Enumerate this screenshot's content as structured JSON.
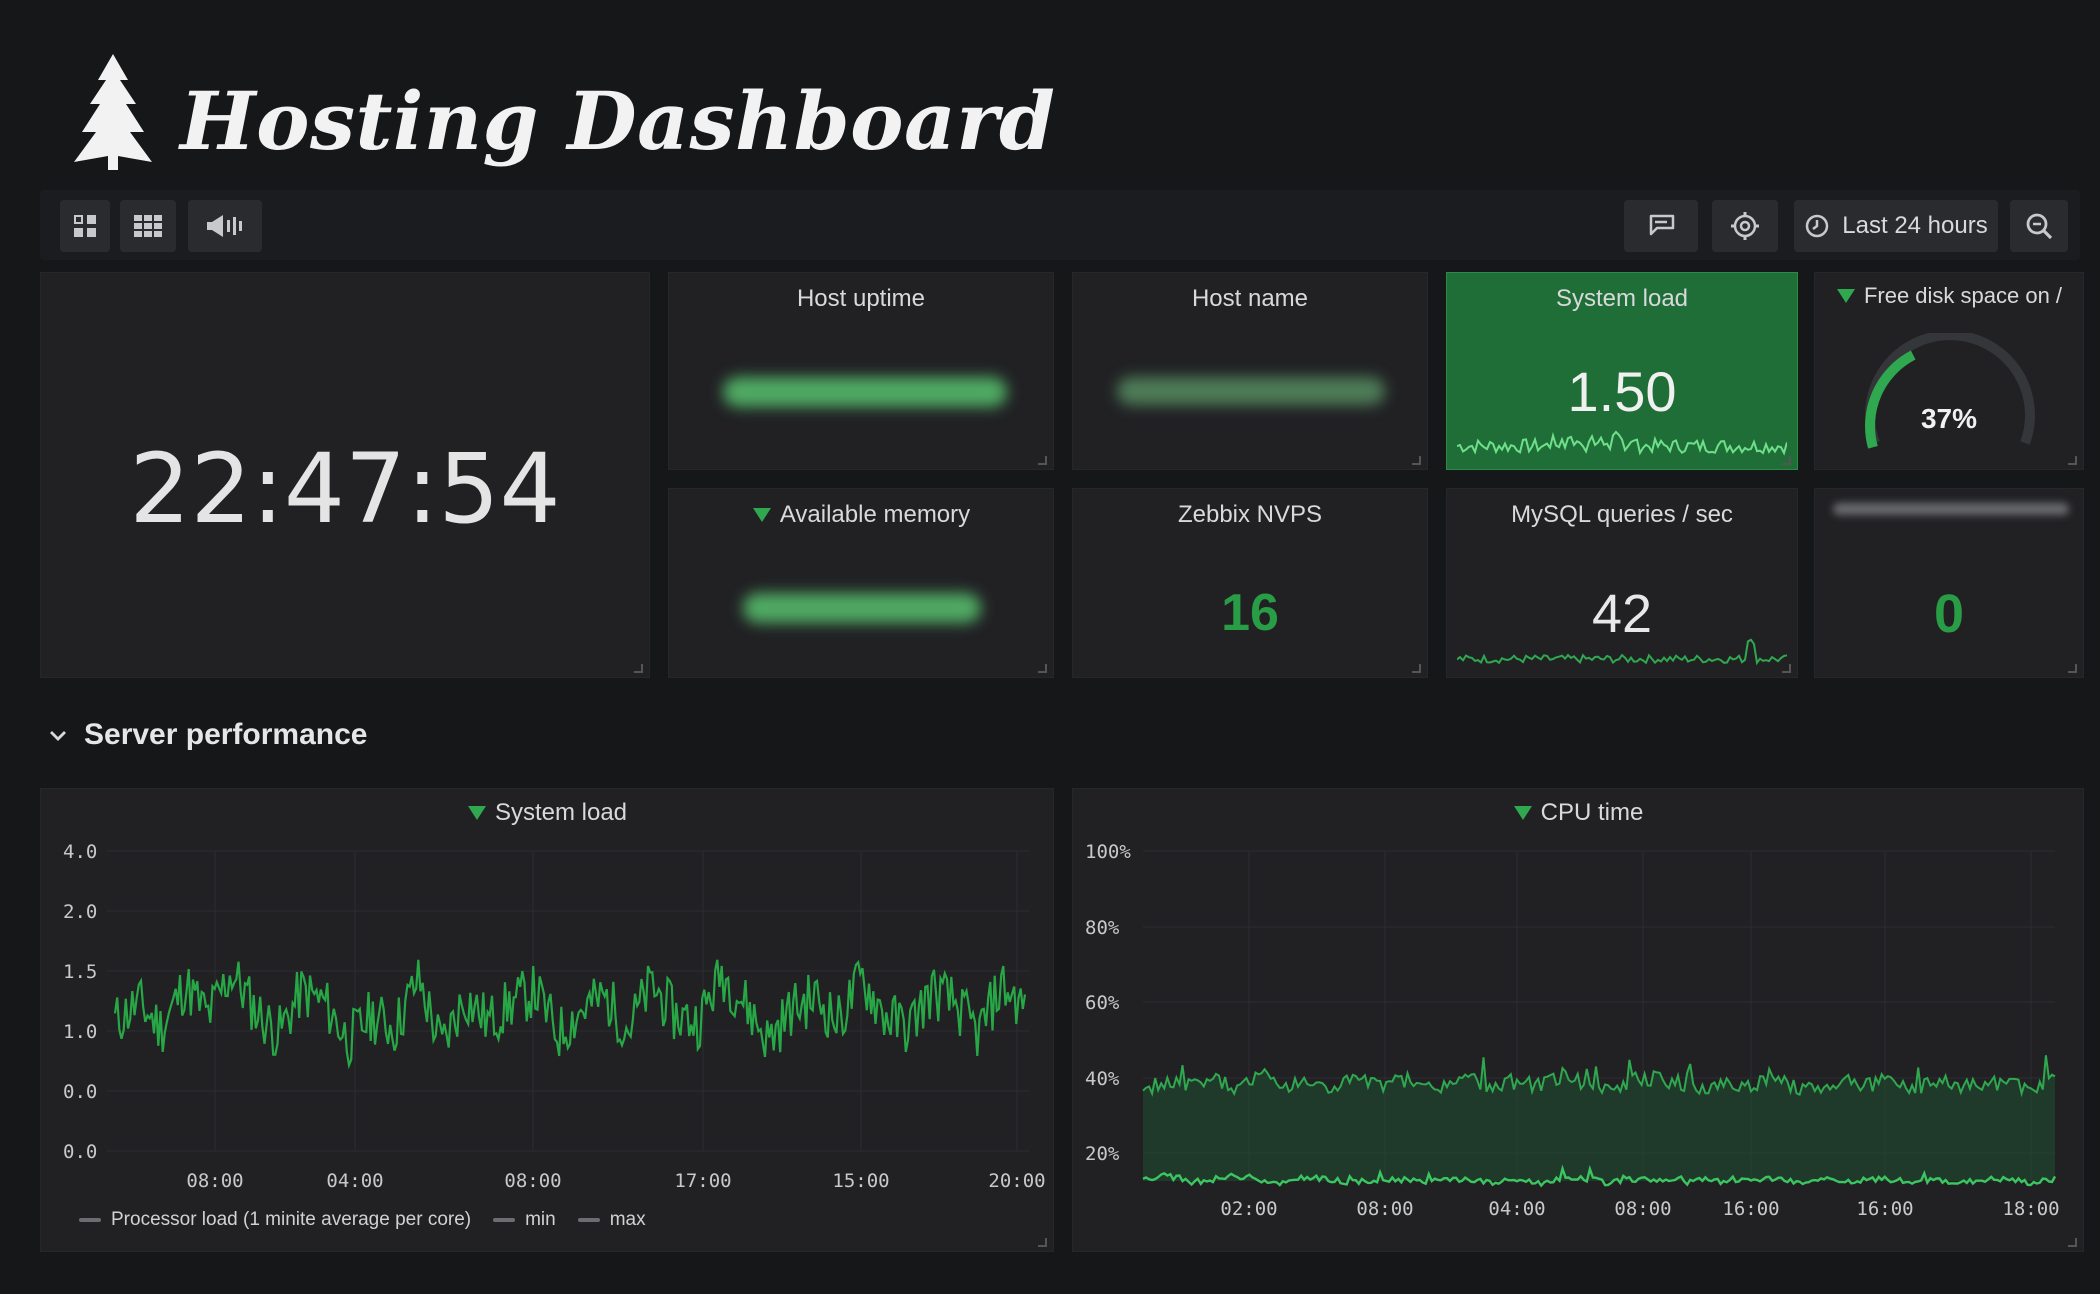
{
  "header": {
    "title": "Hosting Dashboard",
    "logo_icon": "tree-logo-icon"
  },
  "toolbar": {
    "left_buttons": [
      "dashboard-icon",
      "apps-grid-icon",
      "playlist-icon"
    ],
    "right_buttons": [
      "share-icon",
      "settings-icon"
    ],
    "time_range": "Last 24 hours",
    "zoom_icon": "zoom-out-icon"
  },
  "panels": {
    "clock": {
      "value": "22:47:54"
    },
    "host_uptime": {
      "title": "Host uptime"
    },
    "host_name": {
      "title": "Host name"
    },
    "system_load_stat": {
      "title": "System load",
      "value": "1.50"
    },
    "free_disk": {
      "title": "Free disk space on /",
      "value": "37%",
      "gauge_fraction": 0.37
    },
    "available_memory": {
      "title": "Available memory"
    },
    "zabbix_nvps": {
      "title": "Zebbix NVPS",
      "value": "16"
    },
    "mysql_qps": {
      "title": "MySQL queries / sec",
      "value": "42"
    },
    "unnamed": {
      "value": "0"
    }
  },
  "row": {
    "title": "Server performance"
  },
  "colors": {
    "accent_green": "#2fa84f",
    "stat_bg": "#1f6e38",
    "value_green": "#299c46",
    "background": "#161719",
    "panel_bg": "#212124"
  },
  "charts": {
    "system_load": {
      "title": "System load",
      "legend": [
        "Processor load (1 minite average per core)",
        "min",
        "max"
      ]
    },
    "cpu_time": {
      "title": "CPU time"
    }
  },
  "chart_data": [
    {
      "type": "line",
      "title": "System load",
      "y_ticks": [
        "4.0",
        "2.0",
        "1.5",
        "1.0",
        "0.0",
        "0.0"
      ],
      "x_ticks": [
        "08:00",
        "04:00",
        "08:00",
        "17:00",
        "15:00",
        "20:00"
      ],
      "series": [
        {
          "name": "Processor load (1 minite average per core)",
          "values": [
            0.6,
            0.9,
            0.5,
            1.2,
            0.7,
            1.4,
            0.8,
            0.4,
            1.1,
            0.9,
            0.3,
            0.7,
            0.5,
            1.3,
            0.2,
            1.0,
            0.6,
            0.9,
            1.1,
            0.4,
            0.8,
            1.0,
            0.5,
            1.2,
            0.7,
            0.6,
            1.4,
            0.9,
            0.3,
            0.8,
            1.0,
            0.6,
            1.3,
            0.7,
            0.5,
            1.1,
            0.9,
            0.4,
            1.2,
            0.8
          ]
        },
        {
          "name": "min",
          "values": []
        },
        {
          "name": "max",
          "values": []
        }
      ],
      "grid": true
    },
    {
      "type": "area",
      "title": "CPU time",
      "y_ticks": [
        "100%",
        "80%",
        "60%",
        "40%",
        "20%"
      ],
      "x_ticks": [
        "02:00",
        "08:00",
        "04:00",
        "08:00",
        "16:00",
        "16:00",
        "18:00"
      ],
      "ylim": [
        10,
        100
      ],
      "series": [
        {
          "values": [
            37,
            39,
            38,
            40,
            37,
            41,
            38,
            39,
            37,
            40,
            38,
            39,
            37,
            38,
            40,
            37,
            39,
            38,
            41,
            38,
            37,
            39,
            40,
            38,
            37,
            39,
            38,
            40,
            37,
            38,
            39,
            38,
            40,
            37,
            39,
            38,
            38,
            39,
            37,
            40
          ]
        },
        {
          "values": [
            13,
            14,
            12,
            13,
            14,
            13,
            12,
            13,
            13,
            12,
            13,
            13,
            12,
            13,
            13,
            12,
            13,
            12,
            13,
            13,
            12,
            13,
            13,
            12,
            13,
            12,
            13,
            13,
            12,
            13,
            12,
            13,
            13,
            12,
            13,
            12,
            13,
            13,
            12,
            13
          ]
        }
      ],
      "grid": true
    }
  ]
}
